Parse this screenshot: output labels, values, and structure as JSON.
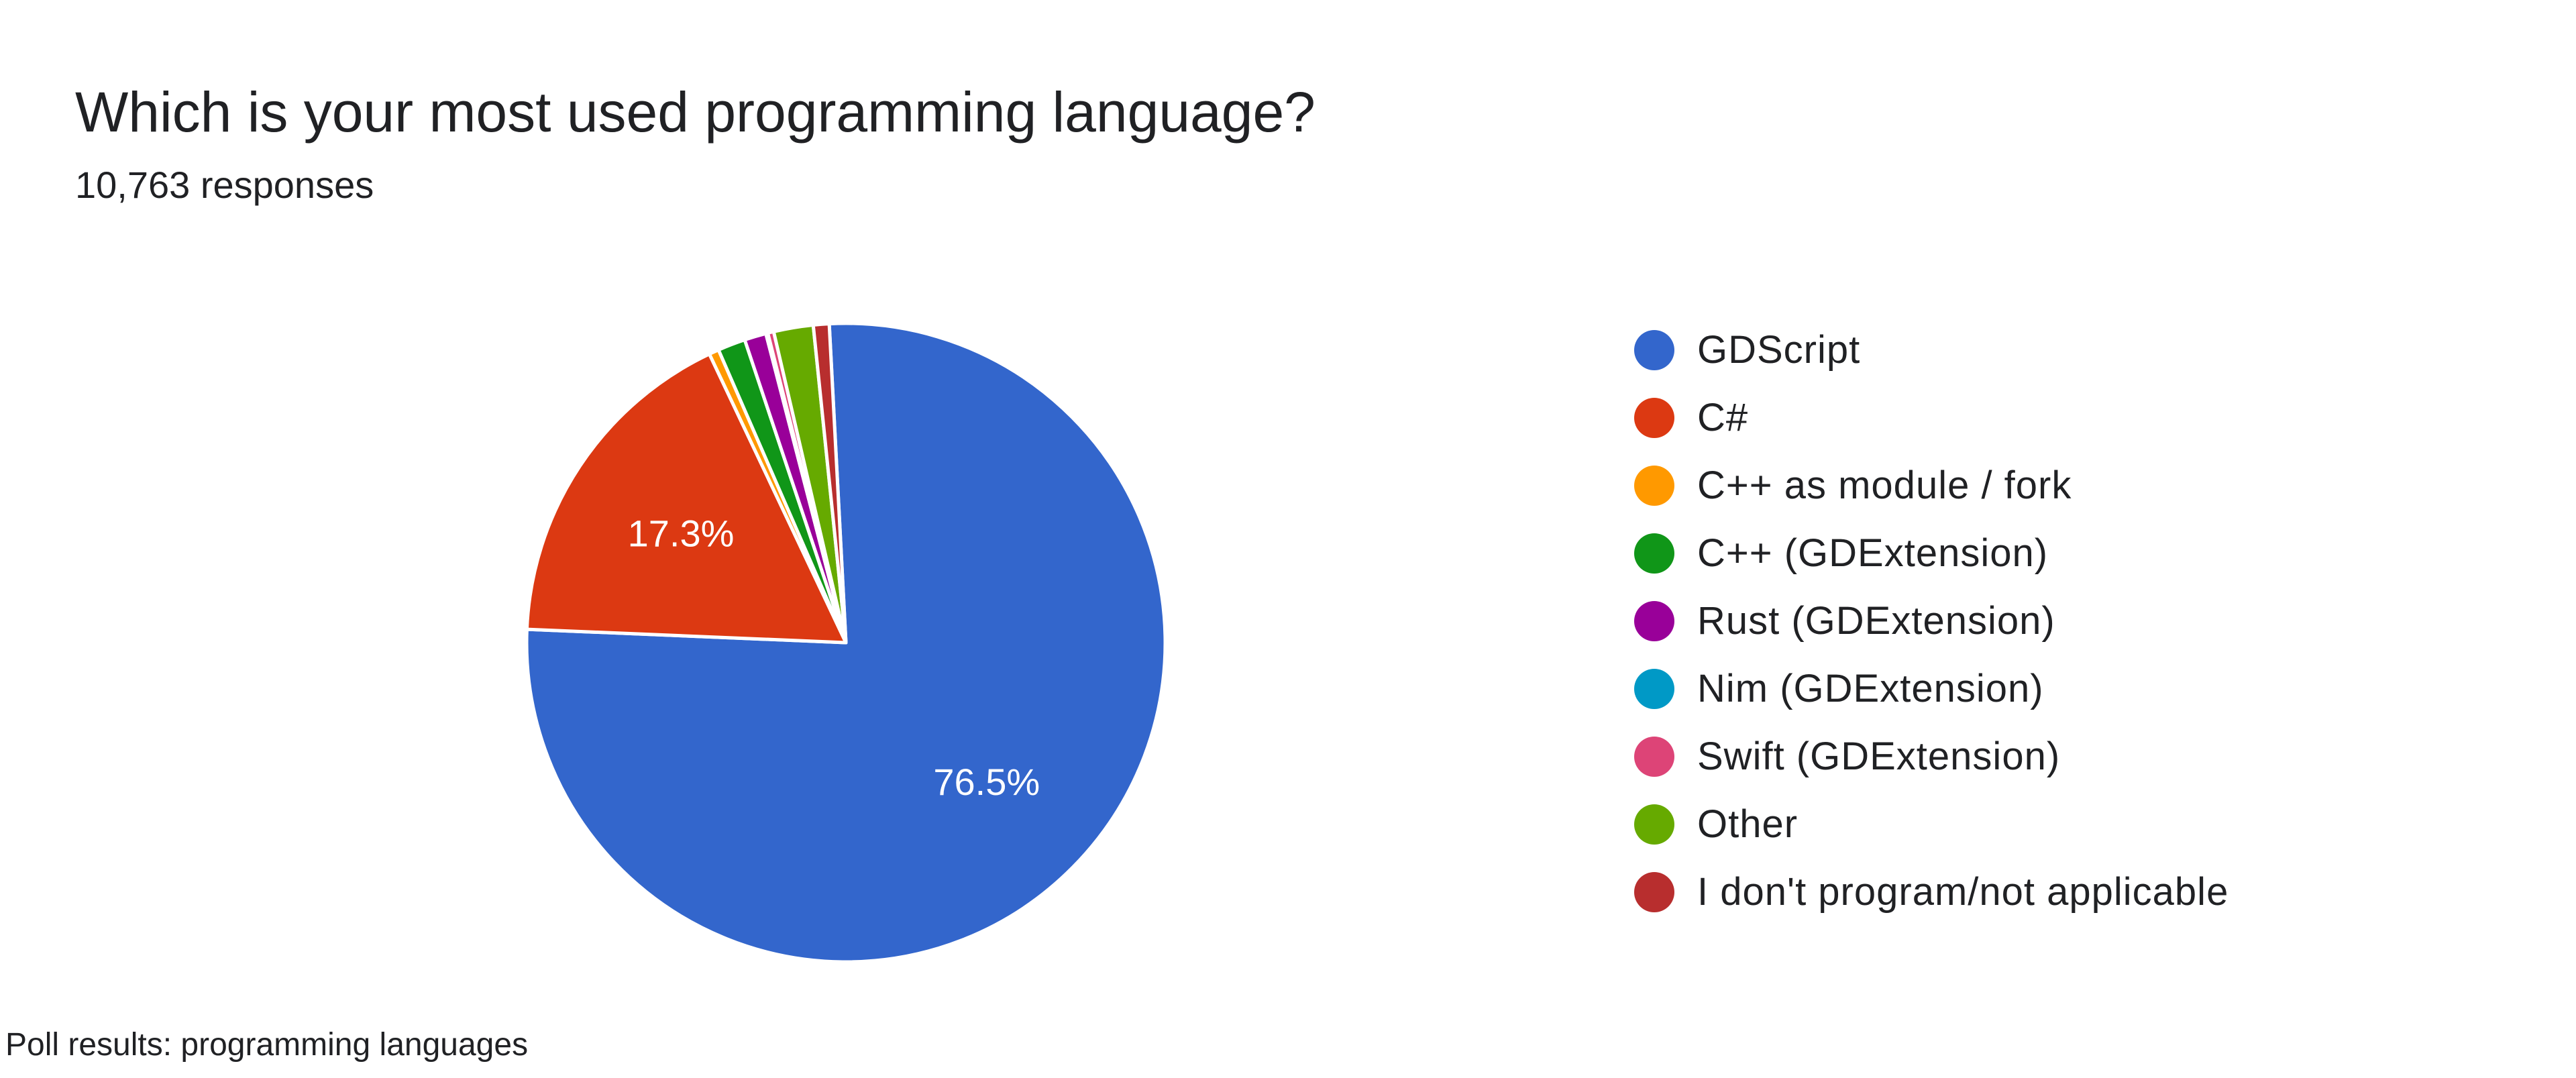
{
  "title": "Which is your most used programming language?",
  "subtitle": "10,763 responses",
  "caption": "Poll results: programming languages",
  "chart_data": {
    "type": "pie",
    "title": "Which is your most used programming language?",
    "subtitle": "10,763 responses",
    "legend_position": "right",
    "start_angle_deg": 93,
    "direction": "clockwise",
    "slices": [
      {
        "label": "GDScript",
        "value": 76.5,
        "display_label": "76.5%",
        "color": "#3366cc"
      },
      {
        "label": "C#",
        "value": 17.3,
        "display_label": "17.3%",
        "color": "#dc3912"
      },
      {
        "label": "C++ as module / fork",
        "value": 0.5,
        "display_label": "",
        "color": "#ff9900"
      },
      {
        "label": "C++ (GDExtension)",
        "value": 1.4,
        "display_label": "",
        "color": "#109618"
      },
      {
        "label": "Rust (GDExtension)",
        "value": 1.1,
        "display_label": "",
        "color": "#990099"
      },
      {
        "label": "Nim (GDExtension)",
        "value": 0.1,
        "display_label": "",
        "color": "#0099c6"
      },
      {
        "label": "Swift (GDExtension)",
        "value": 0.3,
        "display_label": "",
        "color": "#dd4477"
      },
      {
        "label": "Other",
        "value": 2.0,
        "display_label": "",
        "color": "#66aa00"
      },
      {
        "label": "I don't program/not applicable",
        "value": 0.8,
        "display_label": "",
        "color": "#b82e2e"
      }
    ]
  }
}
